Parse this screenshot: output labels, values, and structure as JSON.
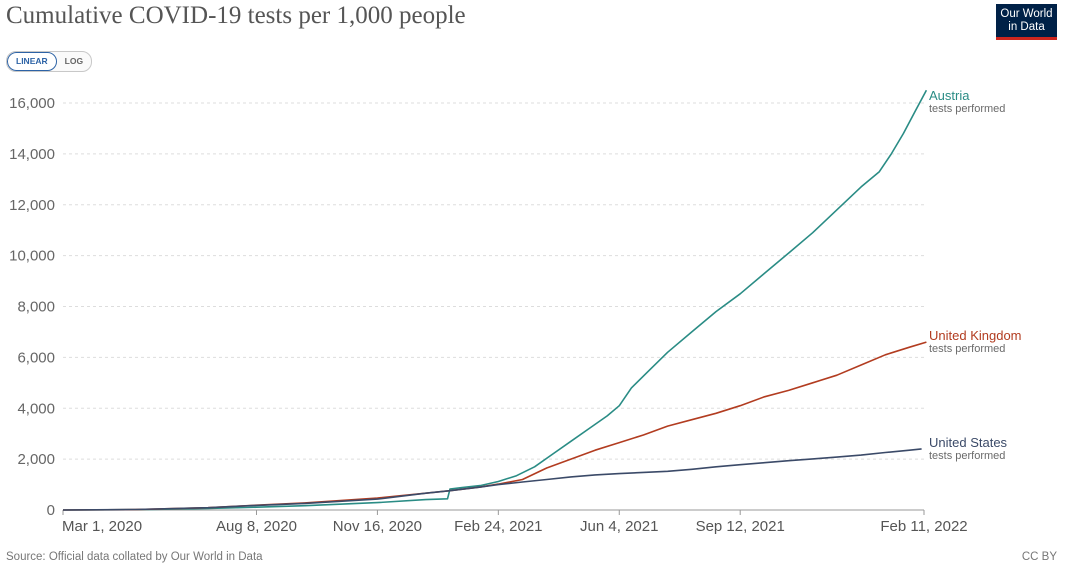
{
  "title": "Cumulative COVID-19 tests per 1,000 people",
  "logo": {
    "line1": "Our World",
    "line2": "in Data"
  },
  "scale_toggle": {
    "linear": "LINEAR",
    "log": "LOG",
    "selected": "linear"
  },
  "source": "Source: Official data collated by Our World in Data",
  "license": "CC BY",
  "colors": {
    "Austria": "#2a8c85",
    "United Kingdom": "#b23c20",
    "United States": "#3b4a68",
    "grid": "#dddddd"
  },
  "chart_data": {
    "type": "line",
    "title": "Cumulative COVID-19 tests per 1,000 people",
    "xlabel": "",
    "ylabel": "",
    "ylim": [
      0,
      16600
    ],
    "xlim_days": [
      0,
      717
    ],
    "x_unit": "days since Mar 1, 2020",
    "yticks": [
      0,
      2000,
      4000,
      6000,
      8000,
      10000,
      12000,
      14000,
      16000
    ],
    "ytick_labels": [
      "0",
      "2,000",
      "4,000",
      "6,000",
      "8,000",
      "10,000",
      "12,000",
      "14,000",
      "16,000"
    ],
    "xticks": [
      {
        "day": 0,
        "label": "Mar 1, 2020"
      },
      {
        "day": 160,
        "label": "Aug 8, 2020"
      },
      {
        "day": 260,
        "label": "Nov 16, 2020"
      },
      {
        "day": 360,
        "label": "Feb 24, 2021"
      },
      {
        "day": 460,
        "label": "Jun 4, 2021"
      },
      {
        "day": 560,
        "label": "Sep 12, 2021"
      },
      {
        "day": 712,
        "label": "Feb 11, 2022"
      }
    ],
    "grid": true,
    "series": [
      {
        "name": "Austria",
        "sublabel": "tests performed",
        "points": [
          [
            0,
            0
          ],
          [
            60,
            10
          ],
          [
            120,
            60
          ],
          [
            160,
            110
          ],
          [
            200,
            170
          ],
          [
            260,
            290
          ],
          [
            300,
            410
          ],
          [
            318,
            440
          ],
          [
            320,
            820
          ],
          [
            330,
            880
          ],
          [
            345,
            960
          ],
          [
            360,
            1120
          ],
          [
            375,
            1350
          ],
          [
            390,
            1700
          ],
          [
            405,
            2200
          ],
          [
            420,
            2700
          ],
          [
            435,
            3200
          ],
          [
            450,
            3700
          ],
          [
            460,
            4100
          ],
          [
            470,
            4800
          ],
          [
            485,
            5500
          ],
          [
            500,
            6200
          ],
          [
            520,
            7000
          ],
          [
            540,
            7800
          ],
          [
            560,
            8500
          ],
          [
            580,
            9300
          ],
          [
            600,
            10100
          ],
          [
            620,
            10900
          ],
          [
            640,
            11800
          ],
          [
            660,
            12700
          ],
          [
            675,
            13300
          ],
          [
            685,
            14000
          ],
          [
            695,
            14800
          ],
          [
            705,
            15700
          ],
          [
            714,
            16500
          ]
        ]
      },
      {
        "name": "United Kingdom",
        "sublabel": "tests performed",
        "points": [
          [
            0,
            0
          ],
          [
            60,
            15
          ],
          [
            120,
            90
          ],
          [
            160,
            190
          ],
          [
            200,
            280
          ],
          [
            260,
            470
          ],
          [
            300,
            660
          ],
          [
            320,
            760
          ],
          [
            345,
            900
          ],
          [
            360,
            1020
          ],
          [
            380,
            1200
          ],
          [
            400,
            1650
          ],
          [
            420,
            2000
          ],
          [
            440,
            2350
          ],
          [
            460,
            2650
          ],
          [
            480,
            2950
          ],
          [
            500,
            3300
          ],
          [
            520,
            3550
          ],
          [
            540,
            3800
          ],
          [
            560,
            4100
          ],
          [
            580,
            4450
          ],
          [
            600,
            4700
          ],
          [
            620,
            5000
          ],
          [
            640,
            5300
          ],
          [
            660,
            5700
          ],
          [
            680,
            6100
          ],
          [
            700,
            6400
          ],
          [
            714,
            6600
          ]
        ]
      },
      {
        "name": "United States",
        "sublabel": "tests performed",
        "points": [
          [
            0,
            0
          ],
          [
            60,
            20
          ],
          [
            120,
            90
          ],
          [
            160,
            180
          ],
          [
            200,
            260
          ],
          [
            260,
            430
          ],
          [
            300,
            660
          ],
          [
            320,
            760
          ],
          [
            345,
            900
          ],
          [
            360,
            1000
          ],
          [
            380,
            1100
          ],
          [
            400,
            1200
          ],
          [
            420,
            1300
          ],
          [
            440,
            1380
          ],
          [
            460,
            1430
          ],
          [
            480,
            1480
          ],
          [
            500,
            1520
          ],
          [
            520,
            1600
          ],
          [
            540,
            1700
          ],
          [
            560,
            1780
          ],
          [
            580,
            1860
          ],
          [
            600,
            1940
          ],
          [
            620,
            2010
          ],
          [
            640,
            2080
          ],
          [
            660,
            2160
          ],
          [
            680,
            2260
          ],
          [
            700,
            2350
          ],
          [
            710,
            2400
          ]
        ]
      }
    ]
  }
}
